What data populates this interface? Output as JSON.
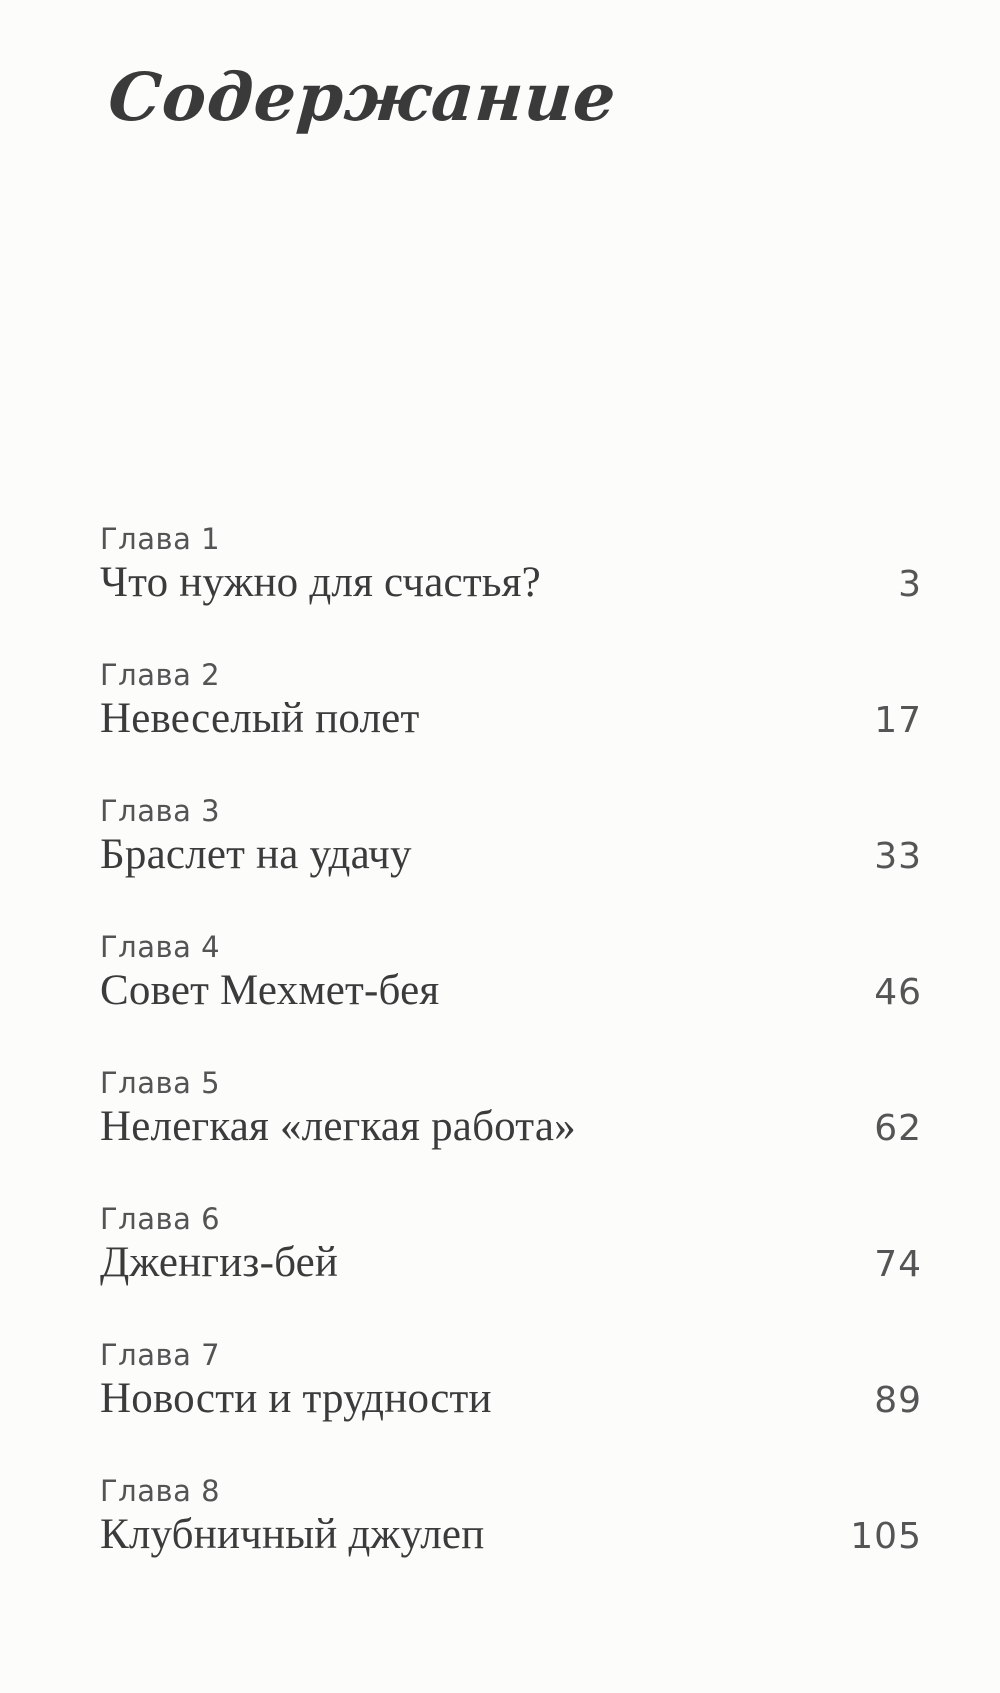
{
  "page_title": "Содержание",
  "toc": {
    "entries": [
      {
        "chapter": "Глава 1",
        "title": "Что нужно для счастья?",
        "page": "3"
      },
      {
        "chapter": "Глава 2",
        "title": "Невеселый полет",
        "page": "17"
      },
      {
        "chapter": "Глава 3",
        "title": "Браслет на удачу",
        "page": "33"
      },
      {
        "chapter": "Глава 4",
        "title": "Совет Мехмет-бея",
        "page": "46"
      },
      {
        "chapter": "Глава 5",
        "title": "Нелегкая «легкая работа»",
        "page": "62"
      },
      {
        "chapter": "Глава 6",
        "title": "Дженгиз-бей",
        "page": "74"
      },
      {
        "chapter": "Глава 7",
        "title": "Новости и трудности",
        "page": "89"
      },
      {
        "chapter": "Глава 8",
        "title": "Клубничный джулеп",
        "page": "105"
      }
    ]
  },
  "colors": {
    "background": "#fcfcfb",
    "title_text": "#3a3a3a",
    "chapter_label": "#545454",
    "chapter_title": "#3b3b3b",
    "page_number": "#555555"
  }
}
